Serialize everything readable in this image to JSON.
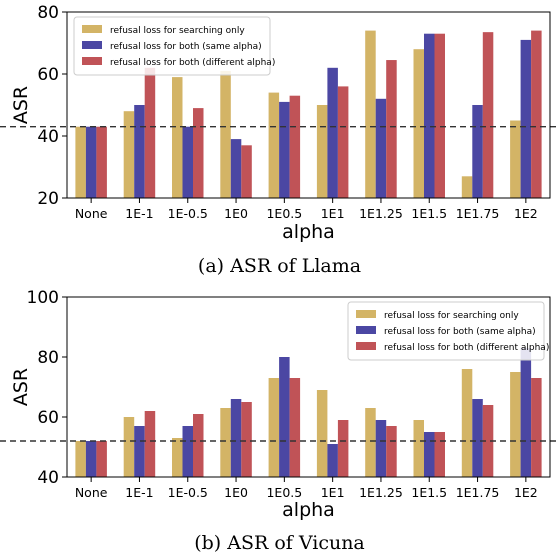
{
  "chart_data": [
    {
      "type": "bar",
      "caption": "(a) ASR of Llama",
      "xlabel": "alpha",
      "ylabel": "ASR",
      "ylim": [
        20,
        80
      ],
      "yticks": [
        20,
        40,
        60,
        80
      ],
      "categories": [
        "None",
        "1E-1",
        "1E-0.5",
        "1E0",
        "1E0.5",
        "1E1",
        "1E1.25",
        "1E1.5",
        "1E1.75",
        "1E2"
      ],
      "baseline": 43,
      "legend_position": "top-left",
      "grid": false,
      "series": [
        {
          "name": "refusal loss for searching only",
          "color": "#d3b466",
          "values": [
            43,
            48,
            59,
            61,
            54,
            50,
            74,
            68,
            27,
            45
          ]
        },
        {
          "name": "refusal loss for both (same alpha)",
          "color": "#4b47a3",
          "values": [
            43,
            50,
            43,
            39,
            51,
            62,
            52,
            73,
            50,
            71
          ]
        },
        {
          "name": "refusal loss for both (different alpha)",
          "color": "#c05357",
          "values": [
            43,
            62,
            49,
            37,
            53,
            56,
            64.5,
            73,
            73.5,
            74
          ]
        }
      ]
    },
    {
      "type": "bar",
      "caption": "(b) ASR of Vicuna",
      "xlabel": "alpha",
      "ylabel": "ASR",
      "ylim": [
        40,
        100
      ],
      "yticks": [
        40,
        60,
        80,
        100
      ],
      "categories": [
        "None",
        "1E-1",
        "1E-0.5",
        "1E0",
        "1E0.5",
        "1E1",
        "1E1.25",
        "1E1.5",
        "1E1.75",
        "1E2"
      ],
      "baseline": 52,
      "legend_position": "top-right",
      "grid": false,
      "series": [
        {
          "name": "refusal loss for searching only",
          "color": "#d3b466",
          "values": [
            52,
            60,
            53,
            63,
            73,
            69,
            63,
            59,
            76,
            75
          ]
        },
        {
          "name": "refusal loss for both (same alpha)",
          "color": "#4b47a3",
          "values": [
            52,
            57,
            57,
            66,
            80,
            51,
            59,
            55,
            66,
            83
          ]
        },
        {
          "name": "refusal loss for both (different alpha)",
          "color": "#c05357",
          "values": [
            52,
            62,
            61,
            65,
            73,
            59,
            57,
            55,
            64,
            73
          ]
        }
      ]
    }
  ]
}
